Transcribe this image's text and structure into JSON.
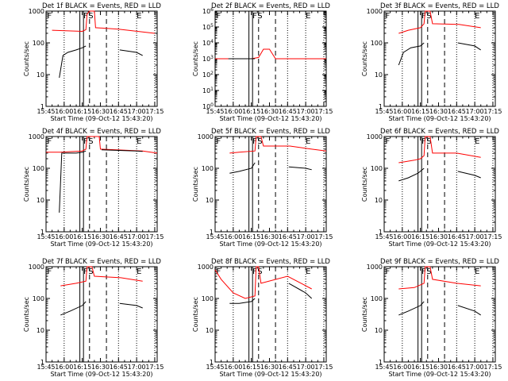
{
  "chart_data": [
    {
      "type": "line",
      "title": "Det 1f BLACK = Events, RED = LLD",
      "xlabel": "Start Time (09-Oct-12 15:43:20)",
      "ylabel": "Counts/sec",
      "yscale": "log",
      "ylim": [
        1,
        1000
      ],
      "x_tick_labels": [
        "15:45",
        "16:00",
        "16:15",
        "16:30",
        "16:45",
        "17:00",
        "17:15"
      ],
      "y_tick_labels": [
        "1",
        "10",
        "100",
        "1000"
      ],
      "markers": [
        "F",
        "S",
        "E"
      ],
      "series": [
        {
          "color": "#ff0000",
          "points": [
            [
              0,
              null
            ],
            [
              5,
              250
            ],
            [
              30,
              230
            ],
            [
              33,
              260
            ],
            [
              34,
              800
            ],
            [
              36,
              1000
            ],
            [
              40,
              1000
            ],
            [
              41,
              300
            ],
            [
              60,
              270
            ],
            [
              90,
              200
            ]
          ]
        },
        {
          "color": "#000000",
          "points": [
            [
              10,
              null
            ],
            [
              11,
              8
            ],
            [
              14,
              40
            ],
            [
              18,
              50
            ],
            [
              25,
              60
            ],
            [
              30,
              70
            ],
            [
              33,
              80
            ],
            [
              60,
              null
            ],
            [
              61,
              60
            ],
            [
              75,
              50
            ],
            [
              80,
              40
            ]
          ]
        }
      ]
    },
    {
      "type": "line",
      "title": "Det 2f BLACK = Events, RED = LLD",
      "xlabel": "Start Time (09-Oct-12 15:43:20)",
      "ylabel": "Counts/sec",
      "yscale": "log",
      "ylim": [
        1,
        1000000
      ],
      "x_tick_labels": [
        "15:45",
        "16:00",
        "16:15",
        "16:30",
        "16:45",
        "17:00",
        "17:15"
      ],
      "y_tick_labels": [
        "10^0",
        "10^1",
        "10^2",
        "10^3",
        "10^4",
        "10^5",
        "10^6"
      ],
      "markers": [
        "F",
        "S",
        "E"
      ],
      "series": [
        {
          "color": "#ff0000",
          "points": [
            [
              0,
              1000
            ],
            [
              30,
              1000
            ],
            [
              36,
              1200
            ],
            [
              40,
              4000
            ],
            [
              45,
              4000
            ],
            [
              50,
              1000
            ],
            [
              92,
              1000
            ]
          ]
        },
        {
          "color": "#000000",
          "points": [
            [
              10,
              null
            ],
            [
              11,
              1000
            ],
            [
              30,
              1000
            ],
            [
              33,
              1000
            ]
          ]
        }
      ]
    },
    {
      "type": "line",
      "title": "Det 3f BLACK = Events, RED = LLD",
      "xlabel": "Start Time (09-Oct-12 15:43:20)",
      "ylabel": "Counts/sec",
      "yscale": "log",
      "ylim": [
        1,
        1000
      ],
      "x_tick_labels": [
        "15:45",
        "16:00",
        "16:15",
        "16:30",
        "16:45",
        "17:00",
        "17:15"
      ],
      "y_tick_labels": [
        "1",
        "10",
        "100",
        "1000"
      ],
      "markers": [
        "F",
        "S",
        "E"
      ],
      "series": [
        {
          "color": "#ff0000",
          "points": [
            [
              10,
              null
            ],
            [
              12,
              200
            ],
            [
              20,
              250
            ],
            [
              30,
              300
            ],
            [
              33,
              400
            ],
            [
              34,
              1000
            ],
            [
              38,
              1000
            ],
            [
              40,
              400
            ],
            [
              62,
              380
            ],
            [
              80,
              300
            ]
          ]
        },
        {
          "color": "#000000",
          "points": [
            [
              10,
              null
            ],
            [
              12,
              20
            ],
            [
              16,
              50
            ],
            [
              22,
              70
            ],
            [
              30,
              80
            ],
            [
              33,
              100
            ],
            [
              60,
              null
            ],
            [
              61,
              100
            ],
            [
              75,
              80
            ],
            [
              80,
              60
            ]
          ]
        }
      ]
    },
    {
      "type": "line",
      "title": "Det 4f BLACK = Events, RED = LLD",
      "xlabel": "Start Time (09-Oct-12 15:43:20)",
      "ylabel": "Counts/sec",
      "yscale": "log",
      "ylim": [
        1,
        1000
      ],
      "x_tick_labels": [
        "15:45",
        "16:00",
        "16:15",
        "16:30",
        "16:45",
        "17:00",
        "17:15"
      ],
      "y_tick_labels": [
        "1",
        "10",
        "100",
        "1000"
      ],
      "markers": [
        "F",
        "S",
        "E"
      ],
      "series": [
        {
          "color": "#ff0000",
          "points": [
            [
              0,
              320
            ],
            [
              12,
              320
            ],
            [
              30,
              350
            ],
            [
              33,
              400
            ],
            [
              34,
              1000
            ],
            [
              44,
              1000
            ],
            [
              45,
              400
            ],
            [
              80,
              350
            ],
            [
              92,
              300
            ]
          ]
        },
        {
          "color": "#000000",
          "points": [
            [
              10,
              null
            ],
            [
              11,
              4
            ],
            [
              13,
              300
            ],
            [
              25,
              300
            ],
            [
              30,
              320
            ],
            [
              33,
              350
            ],
            [
              45,
              null
            ],
            [
              46,
              380
            ],
            [
              75,
              350
            ],
            [
              80,
              340
            ]
          ]
        }
      ]
    },
    {
      "type": "line",
      "title": "Det 5f BLACK = Events, RED = LLD",
      "xlabel": "Start Time (09-Oct-12 15:43:20)",
      "ylabel": "Counts/sec",
      "yscale": "log",
      "ylim": [
        1,
        1000
      ],
      "x_tick_labels": [
        "15:45",
        "16:00",
        "16:15",
        "16:30",
        "16:45",
        "17:00",
        "17:15"
      ],
      "y_tick_labels": [
        "1",
        "10",
        "100",
        "1000"
      ],
      "markers": [
        "F",
        "S",
        "E"
      ],
      "series": [
        {
          "color": "#ff0000",
          "points": [
            [
              10,
              null
            ],
            [
              12,
              300
            ],
            [
              20,
              320
            ],
            [
              33,
              350
            ],
            [
              34,
              1000
            ],
            [
              38,
              1000
            ],
            [
              40,
              500
            ],
            [
              62,
              500
            ],
            [
              80,
              400
            ],
            [
              92,
              350
            ]
          ]
        },
        {
          "color": "#000000",
          "points": [
            [
              10,
              null
            ],
            [
              12,
              70
            ],
            [
              20,
              80
            ],
            [
              30,
              100
            ],
            [
              33,
              150
            ],
            [
              60,
              null
            ],
            [
              61,
              110
            ],
            [
              75,
              100
            ],
            [
              80,
              90
            ]
          ]
        }
      ]
    },
    {
      "type": "line",
      "title": "Det 6f BLACK = Events, RED = LLD",
      "xlabel": "Start Time (09-Oct-12 15:43:20)",
      "ylabel": "Counts/sec",
      "yscale": "log",
      "ylim": [
        1,
        1000
      ],
      "x_tick_labels": [
        "15:45",
        "16:00",
        "16:15",
        "16:30",
        "16:45",
        "17:00",
        "17:15"
      ],
      "y_tick_labels": [
        "1",
        "10",
        "100",
        "1000"
      ],
      "markers": [
        "F",
        "S",
        "E"
      ],
      "series": [
        {
          "color": "#ff0000",
          "points": [
            [
              10,
              null
            ],
            [
              12,
              150
            ],
            [
              25,
              180
            ],
            [
              30,
              200
            ],
            [
              33,
              250
            ],
            [
              34,
              1000
            ],
            [
              38,
              1000
            ],
            [
              40,
              300
            ],
            [
              60,
              300
            ],
            [
              80,
              220
            ]
          ]
        },
        {
          "color": "#000000",
          "points": [
            [
              10,
              null
            ],
            [
              12,
              40
            ],
            [
              20,
              50
            ],
            [
              28,
              70
            ],
            [
              33,
              100
            ],
            [
              60,
              null
            ],
            [
              61,
              80
            ],
            [
              75,
              60
            ],
            [
              80,
              50
            ]
          ]
        }
      ]
    },
    {
      "type": "line",
      "title": "Det 7f BLACK = Events, RED = LLD",
      "xlabel": "Start Time (09-Oct-12 15:43:20)",
      "ylabel": "Counts/sec",
      "yscale": "log",
      "ylim": [
        1,
        1000
      ],
      "x_tick_labels": [
        "15:45",
        "16:00",
        "16:15",
        "16:30",
        "16:45",
        "17:00",
        "17:15"
      ],
      "y_tick_labels": [
        "1",
        "10",
        "100",
        "1000"
      ],
      "markers": [
        "F",
        "S",
        "E"
      ],
      "series": [
        {
          "color": "#ff0000",
          "points": [
            [
              10,
              null
            ],
            [
              12,
              250
            ],
            [
              25,
              300
            ],
            [
              33,
              350
            ],
            [
              34,
              1000
            ],
            [
              38,
              1000
            ],
            [
              40,
              500
            ],
            [
              62,
              450
            ],
            [
              80,
              350
            ]
          ]
        },
        {
          "color": "#000000",
          "points": [
            [
              10,
              null
            ],
            [
              12,
              30
            ],
            [
              20,
              40
            ],
            [
              30,
              60
            ],
            [
              33,
              80
            ],
            [
              60,
              null
            ],
            [
              61,
              70
            ],
            [
              75,
              60
            ],
            [
              80,
              50
            ]
          ]
        }
      ]
    },
    {
      "type": "line",
      "title": "Det 8f BLACK = Events, RED = LLD",
      "xlabel": "Start Time (09-Oct-12 15:43:20)",
      "ylabel": "Counts/sec",
      "yscale": "log",
      "ylim": [
        1,
        1000
      ],
      "x_tick_labels": [
        "15:45",
        "16:00",
        "16:15",
        "16:30",
        "16:45",
        "17:00",
        "17:15"
      ],
      "y_tick_labels": [
        "1",
        "10",
        "100",
        "1000"
      ],
      "markers": [
        "F",
        "S",
        "E"
      ],
      "series": [
        {
          "color": "#ff0000",
          "points": [
            [
              0,
              800
            ],
            [
              5,
              400
            ],
            [
              15,
              150
            ],
            [
              25,
              100
            ],
            [
              33,
              120
            ],
            [
              34,
              1000
            ],
            [
              36,
              1000
            ],
            [
              38,
              300
            ],
            [
              60,
              500
            ],
            [
              80,
              200
            ]
          ]
        },
        {
          "color": "#000000",
          "points": [
            [
              10,
              null
            ],
            [
              12,
              70
            ],
            [
              20,
              70
            ],
            [
              30,
              80
            ],
            [
              33,
              100
            ],
            [
              60,
              null
            ],
            [
              61,
              300
            ],
            [
              75,
              150
            ],
            [
              80,
              100
            ]
          ]
        }
      ]
    },
    {
      "type": "line",
      "title": "Det 9f BLACK = Events, RED = LLD",
      "xlabel": "Start Time (09-Oct-12 15:43:20)",
      "ylabel": "Counts/sec",
      "yscale": "log",
      "ylim": [
        1,
        1000
      ],
      "x_tick_labels": [
        "15:45",
        "16:00",
        "16:15",
        "16:30",
        "16:45",
        "17:00",
        "17:15"
      ],
      "y_tick_labels": [
        "1",
        "10",
        "100",
        "1000"
      ],
      "markers": [
        "F",
        "S",
        "E"
      ],
      "series": [
        {
          "color": "#ff0000",
          "points": [
            [
              10,
              null
            ],
            [
              12,
              200
            ],
            [
              25,
              220
            ],
            [
              33,
              300
            ],
            [
              34,
              1000
            ],
            [
              38,
              1000
            ],
            [
              40,
              400
            ],
            [
              60,
              300
            ],
            [
              80,
              250
            ]
          ]
        },
        {
          "color": "#000000",
          "points": [
            [
              10,
              null
            ],
            [
              12,
              30
            ],
            [
              20,
              40
            ],
            [
              30,
              60
            ],
            [
              33,
              80
            ],
            [
              60,
              null
            ],
            [
              61,
              60
            ],
            [
              75,
              40
            ],
            [
              80,
              30
            ]
          ]
        }
      ]
    }
  ]
}
